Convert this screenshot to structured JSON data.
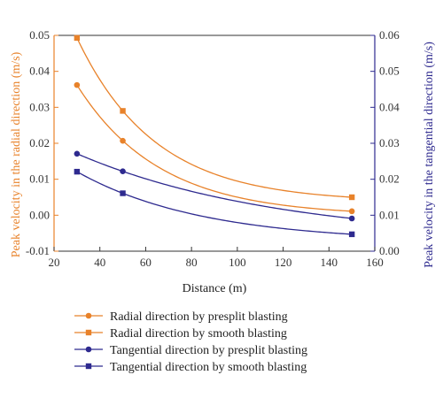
{
  "chart_data": {
    "type": "line",
    "title": "",
    "xlabel": "Distance (m)",
    "ylabel_left": "Peak velocity in the radial direction (m/s)",
    "ylabel_right": "Peak velocity in the tangential direction (m/s)",
    "xlim": [
      20,
      160
    ],
    "ylim_left": [
      -0.01,
      0.05
    ],
    "ylim_right": [
      0.0,
      0.06
    ],
    "xticks": [
      "20",
      "40",
      "60",
      "80",
      "100",
      "120",
      "140",
      "160"
    ],
    "yticks_left": [
      "-0.01",
      "0.00",
      "0.01",
      "0.02",
      "0.03",
      "0.04",
      "0.05"
    ],
    "yticks_right": [
      "0.00",
      "0.01",
      "0.02",
      "0.03",
      "0.04",
      "0.05",
      "0.06"
    ],
    "grid": false,
    "legend_position": "below",
    "colors": {
      "radial": "#E8822A",
      "tangential": "#2E2A8F",
      "axis": "#333333"
    },
    "series": [
      {
        "name": "Radial direction by presplit blasting",
        "axis": "left",
        "marker": "circle",
        "color": "#E8822A",
        "x": [
          30,
          50,
          150
        ],
        "y": [
          0.0362,
          0.0207,
          0.0011
        ]
      },
      {
        "name": "Radial direction by smooth blasting",
        "axis": "left",
        "marker": "square",
        "color": "#E8822A",
        "x": [
          30,
          50,
          150
        ],
        "y": [
          0.0493,
          0.029,
          0.005
        ]
      },
      {
        "name": "Tangential direction by presplit blasting",
        "axis": "right",
        "marker": "circle",
        "color": "#2E2A8F",
        "x": [
          30,
          50,
          150
        ],
        "y": [
          0.0271,
          0.0222,
          0.0091
        ]
      },
      {
        "name": "Tangential direction by smooth blasting",
        "axis": "right",
        "marker": "square",
        "color": "#2E2A8F",
        "x": [
          30,
          50,
          150
        ],
        "y": [
          0.0221,
          0.0161,
          0.0047
        ]
      }
    ]
  }
}
